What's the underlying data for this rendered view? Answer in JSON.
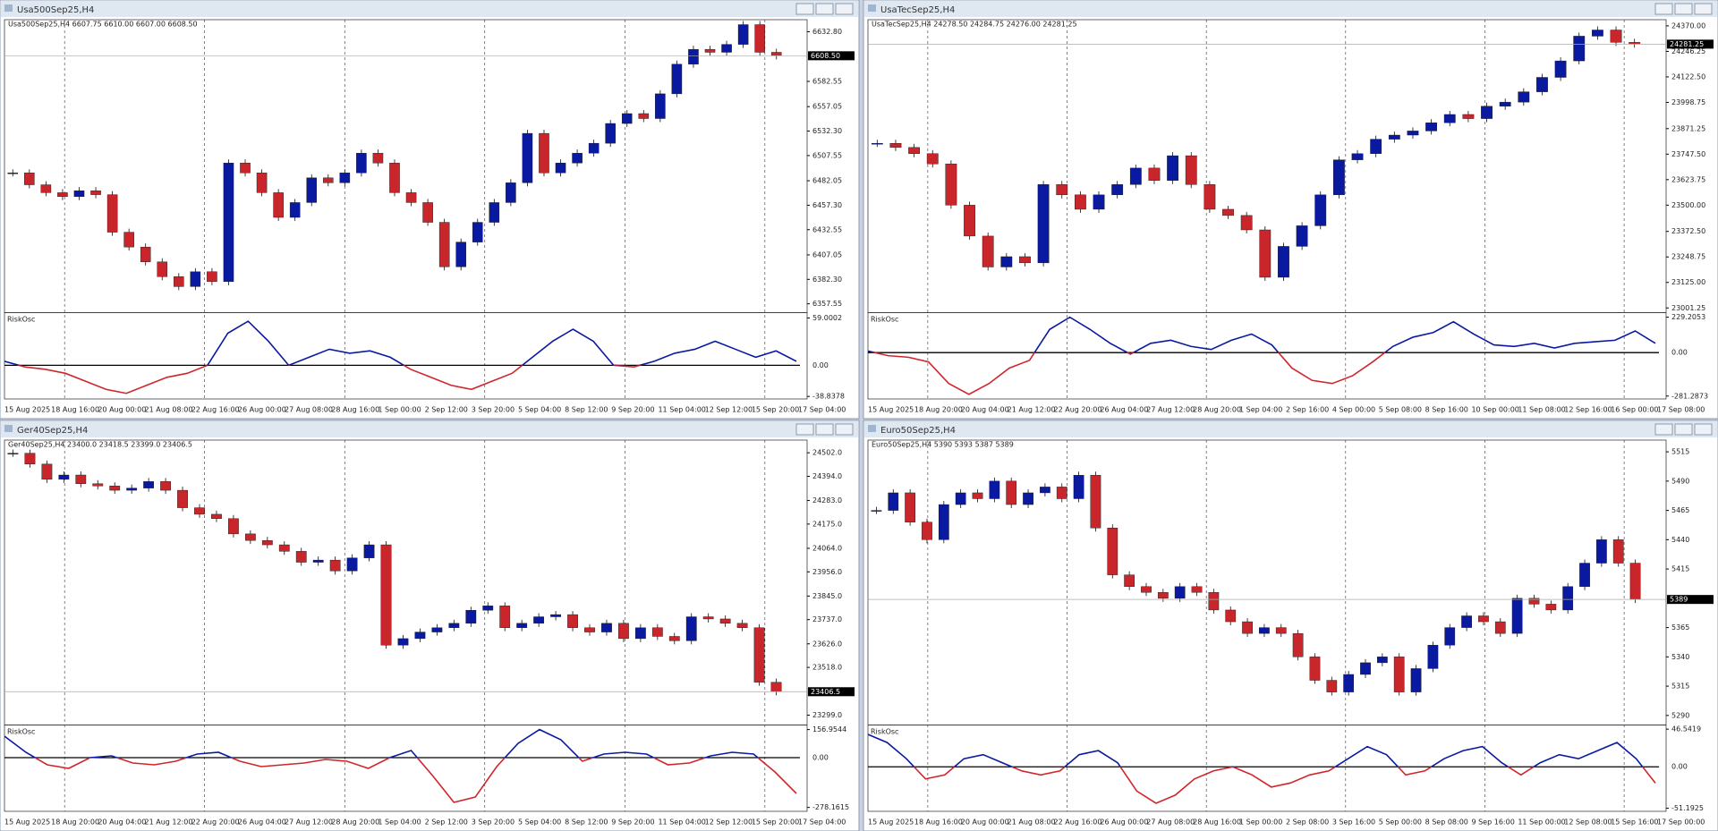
{
  "windows": [
    {
      "title": "Usa500Sep25,H4",
      "info": "Usa500Sep25,H4  6607.75 6610.00 6607.00 6608.50",
      "price_tag": "6608.50",
      "ylim": [
        6350,
        6645
      ],
      "yticks": [
        {
          "value": 6632.8,
          "label": "6632.80"
        },
        6582.55,
        6557.05,
        {
          "value": 6532.3,
          "label": "6532.30"
        },
        6507.55,
        6482.05,
        {
          "value": 6457.3,
          "label": "6457.30"
        },
        6432.55,
        6407.05,
        {
          "value": 6382.3,
          "label": "6382.30"
        },
        6357.55
      ],
      "closes": [
        6490,
        6478,
        6470,
        6466,
        6472,
        6468,
        6430,
        6415,
        6400,
        6385,
        6375,
        6390,
        6380,
        6500,
        6490,
        6470,
        6445,
        6460,
        6485,
        6480,
        6490,
        6510,
        6500,
        6470,
        6460,
        6440,
        6395,
        6420,
        6440,
        6460,
        6480,
        6530,
        6490,
        6500,
        6510,
        6520,
        6540,
        6550,
        6545,
        6570,
        6600,
        6615,
        6612,
        6620,
        6640,
        6612,
        6608.5
      ],
      "xlabels": [
        "15 Aug 2025",
        "18 Aug 16:00",
        "20 Aug 00:00",
        "21 Aug 08:00",
        "22 Aug 16:00",
        "26 Aug 00:00",
        "27 Aug 08:00",
        "28 Aug 16:00",
        "1 Sep 00:00",
        "2 Sep 12:00",
        "3 Sep 20:00",
        "5 Sep 04:00",
        "8 Sep 12:00",
        "9 Sep 20:00",
        "11 Sep 04:00",
        "12 Sep 12:00",
        "15 Sep 20:00",
        "17 Sep 04:00"
      ],
      "osc": {
        "name": "RiskOsc",
        "ylim": [
          -42,
          64
        ],
        "ticks": [
          59.0002,
          {
            "value": 0,
            "label": "0.00"
          },
          -38.8378
        ],
        "values": [
          5,
          -2,
          -5,
          -10,
          -20,
          -30,
          -35,
          -25,
          -15,
          -10,
          0,
          40,
          55,
          30,
          0,
          10,
          20,
          15,
          18,
          10,
          -5,
          -15,
          -25,
          -30,
          -20,
          -10,
          10,
          30,
          45,
          30,
          0,
          -2,
          5,
          15,
          20,
          30,
          20,
          10,
          18,
          5
        ]
      }
    },
    {
      "title": "UsaTecSep25,H4",
      "info": "UsaTecSep25,H4  24278.50 24284.75 24276.00 24281.25",
      "price_tag": "24281.25",
      "ylim": [
        22985,
        24400
      ],
      "yticks": [
        {
          "value": 24370,
          "label": "24370.00"
        },
        24246.25,
        {
          "value": 24122.5,
          "label": "24122.50"
        },
        23998.75,
        23871.25,
        {
          "value": 23747.5,
          "label": "23747.50"
        },
        23623.75,
        {
          "value": 23500,
          "label": "23500.00"
        },
        {
          "value": 23372.5,
          "label": "23372.50"
        },
        23248.75,
        {
          "value": 23125,
          "label": "23125.00"
        },
        23001.25
      ],
      "closes": [
        23800,
        23780,
        23750,
        23700,
        23500,
        23350,
        23200,
        23250,
        23220,
        23600,
        23550,
        23480,
        23550,
        23600,
        23680,
        23620,
        23740,
        23600,
        23480,
        23450,
        23380,
        23150,
        23300,
        23400,
        23550,
        23720,
        23750,
        23820,
        23840,
        23860,
        23900,
        23940,
        23920,
        23980,
        24000,
        24050,
        24120,
        24200,
        24320,
        24350,
        24290,
        24281.25
      ],
      "xlabels": [
        "15 Aug 2025",
        "18 Aug 20:00",
        "20 Aug 04:00",
        "21 Aug 12:00",
        "22 Aug 20:00",
        "26 Aug 04:00",
        "27 Aug 12:00",
        "28 Aug 20:00",
        "1 Sep 04:00",
        "2 Sep 16:00",
        "4 Sep 00:00",
        "5 Sep 08:00",
        "8 Sep 16:00",
        "10 Sep 00:00",
        "11 Sep 08:00",
        "12 Sep 16:00",
        "16 Sep 00:00",
        "17 Sep 08:00"
      ],
      "osc": {
        "name": "RiskOsc",
        "ylim": [
          -300,
          250
        ],
        "ticks": [
          229.2053,
          {
            "value": 0,
            "label": "0.00"
          },
          -281.2873
        ],
        "values": [
          10,
          -20,
          -30,
          -60,
          -200,
          -270,
          -200,
          -100,
          -50,
          150,
          229,
          150,
          60,
          -10,
          60,
          80,
          40,
          20,
          80,
          120,
          50,
          -100,
          -180,
          -200,
          -150,
          -60,
          40,
          100,
          130,
          200,
          120,
          50,
          40,
          60,
          30,
          60,
          70,
          80,
          140,
          60
        ]
      }
    },
    {
      "title": "Ger40Sep25,H4",
      "info": "Ger40Sep25,H4  23400.0 23418.5 23399.0 23406.5",
      "price_tag": "23406.5",
      "ylim": [
        23260,
        24560
      ],
      "yticks": [
        {
          "value": 24502,
          "label": "24502.0"
        },
        {
          "value": 24394,
          "label": "24394.0"
        },
        {
          "value": 24283,
          "label": "24283.0"
        },
        {
          "value": 24175,
          "label": "24175.0"
        },
        {
          "value": 24064,
          "label": "24064.0"
        },
        {
          "value": 23956,
          "label": "23956.0"
        },
        {
          "value": 23845,
          "label": "23845.0"
        },
        {
          "value": 23737,
          "label": "23737.0"
        },
        {
          "value": 23626,
          "label": "23626.0"
        },
        {
          "value": 23518,
          "label": "23518.0"
        },
        {
          "value": 23299,
          "label": "23299.0"
        }
      ],
      "closes": [
        24500,
        24450,
        24380,
        24400,
        24360,
        24350,
        24330,
        24340,
        24370,
        24330,
        24250,
        24220,
        24200,
        24130,
        24100,
        24080,
        24050,
        24000,
        24010,
        23960,
        24020,
        24080,
        23620,
        23650,
        23680,
        23700,
        23720,
        23780,
        23800,
        23700,
        23720,
        23750,
        23760,
        23700,
        23680,
        23720,
        23650,
        23700,
        23660,
        23640,
        23750,
        23740,
        23720,
        23700,
        23450,
        23406.5
      ],
      "xlabels": [
        "15 Aug 2025",
        "18 Aug 20:00",
        "20 Aug 04:00",
        "21 Aug 12:00",
        "22 Aug 20:00",
        "26 Aug 04:00",
        "27 Aug 12:00",
        "28 Aug 20:00",
        "1 Sep 04:00",
        "2 Sep 12:00",
        "3 Sep 20:00",
        "5 Sep 04:00",
        "8 Sep 12:00",
        "9 Sep 20:00",
        "11 Sep 04:00",
        "12 Sep 12:00",
        "15 Sep 20:00",
        "17 Sep 04:00"
      ],
      "osc": {
        "name": "RiskOsc",
        "ylim": [
          -300,
          175
        ],
        "ticks": [
          156.9544,
          {
            "value": 0,
            "label": "0.00"
          },
          -278.1615
        ],
        "values": [
          120,
          30,
          -40,
          -60,
          0,
          10,
          -30,
          -40,
          -20,
          20,
          30,
          -20,
          -50,
          -40,
          -30,
          -10,
          -20,
          -60,
          0,
          40,
          -100,
          -250,
          -220,
          -50,
          80,
          157,
          100,
          -20,
          20,
          30,
          20,
          -40,
          -30,
          10,
          30,
          20,
          -80,
          -200
        ]
      }
    },
    {
      "title": "Euro50Sep25,H4",
      "info": "Euro50Sep25,H4  5390 5393 5387 5389",
      "price_tag": "5389",
      "ylim": [
        5283,
        5525
      ],
      "yticks": [
        5515,
        5490,
        5465,
        5440,
        5415,
        5365,
        5340,
        5315,
        5290
      ],
      "closes": [
        5465,
        5480,
        5455,
        5440,
        5470,
        5480,
        5475,
        5490,
        5470,
        5480,
        5485,
        5475,
        5495,
        5450,
        5410,
        5400,
        5395,
        5390,
        5400,
        5395,
        5380,
        5370,
        5360,
        5365,
        5360,
        5340,
        5320,
        5310,
        5325,
        5335,
        5340,
        5310,
        5330,
        5350,
        5365,
        5375,
        5370,
        5360,
        5390,
        5385,
        5380,
        5400,
        5420,
        5440,
        5420,
        5389
      ],
      "xlabels": [
        "15 Aug 2025",
        "18 Aug 16:00",
        "20 Aug 00:00",
        "21 Aug 08:00",
        "22 Aug 16:00",
        "26 Aug 00:00",
        "27 Aug 08:00",
        "28 Aug 16:00",
        "1 Sep 00:00",
        "2 Sep 08:00",
        "3 Sep 16:00",
        "5 Sep 00:00",
        "8 Sep 08:00",
        "9 Sep 16:00",
        "11 Sep 00:00",
        "12 Sep 08:00",
        "15 Sep 16:00",
        "17 Sep 00:00"
      ],
      "osc": {
        "name": "RiskOsc",
        "ylim": [
          -55,
          50
        ],
        "ticks": [
          46.5419,
          {
            "value": 0,
            "label": "0.00"
          },
          -51.1925
        ],
        "values": [
          40,
          30,
          10,
          -15,
          -10,
          10,
          15,
          5,
          -5,
          -10,
          -5,
          15,
          20,
          5,
          -30,
          -45,
          -35,
          -15,
          -5,
          0,
          -10,
          -25,
          -20,
          -10,
          -5,
          10,
          25,
          15,
          -10,
          -5,
          10,
          20,
          25,
          5,
          -10,
          5,
          15,
          10,
          20,
          30,
          10,
          -20
        ]
      }
    }
  ]
}
